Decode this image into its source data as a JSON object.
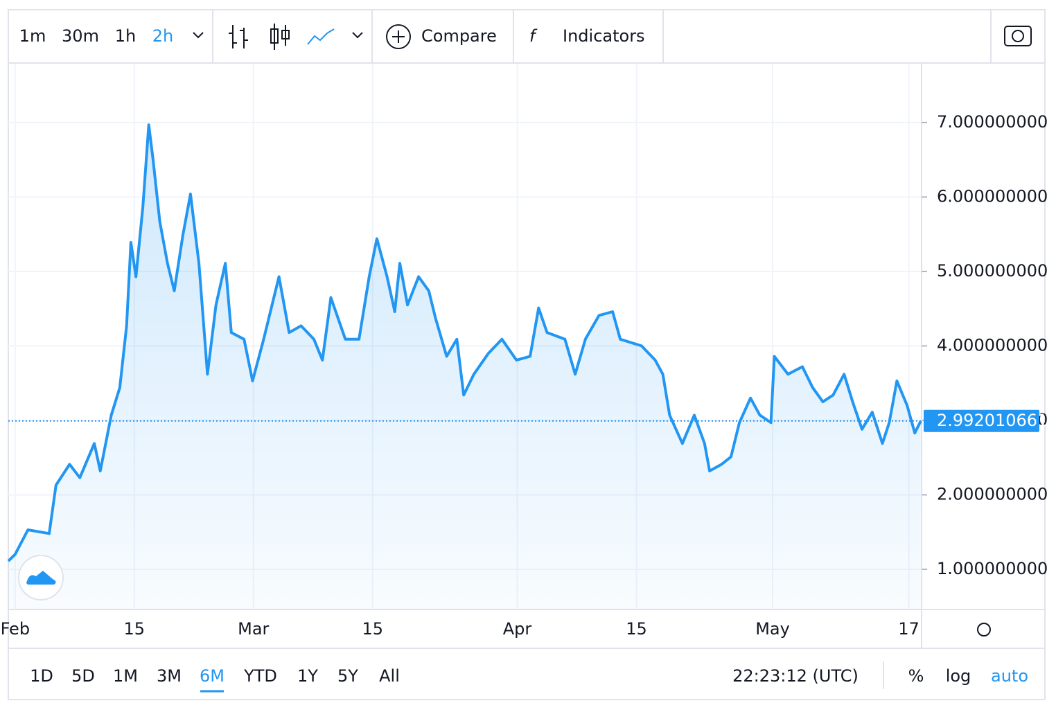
{
  "toolbar": {
    "intervals": [
      "1m",
      "30m",
      "1h",
      "2h"
    ],
    "compare": "Compare",
    "indicators": "Indicators"
  },
  "chart_data": {
    "type": "line",
    "color": "#2196f3",
    "x": [
      -0.8,
      0,
      1.5,
      4,
      4.8,
      6.4,
      7.6,
      9.3,
      10,
      11.3,
      12.3,
      13.1,
      13.6,
      14.2,
      15,
      15.7,
      16.2,
      17,
      17.9,
      18.7,
      19.7,
      20.6,
      21.6,
      22.6,
      23.6,
      24.7,
      25.4,
      26.9,
      27.9,
      29.2,
      31,
      32.2,
      33.6,
      35.1,
      36.1,
      37.1,
      38.8,
      40.4,
      41.6,
      42.5,
      43.7,
      44.6,
      45.2,
      46.1,
      47.4,
      48.6,
      49.4,
      50.7,
      51.9,
      52.7,
      53.9,
      55.6,
      57.2,
      58.9,
      60.5,
      61.5,
      62.5,
      64.6,
      65.8,
      67,
      68.6,
      70.2,
      71.1,
      73.6,
      75.2,
      76.1,
      76.9,
      78.4,
      79.8,
      81,
      81.6,
      83,
      84.1,
      85.1,
      86.4,
      87.5,
      88.8,
      89.2,
      90.8,
      92.5,
      93.7,
      94.9,
      96.1,
      97.4,
      98.4,
      99.5,
      100.7,
      101.9,
      102.7,
      103.6,
      104.8,
      105.7,
      106.4
    ],
    "values": [
      1.11,
      1.2,
      1.53,
      1.48,
      2.13,
      2.41,
      2.23,
      2.69,
      2.32,
      3.07,
      3.44,
      4.27,
      5.39,
      4.93,
      5.86,
      6.97,
      6.51,
      5.67,
      5.11,
      4.74,
      5.48,
      6.04,
      5.11,
      3.62,
      4.55,
      5.11,
      4.18,
      4.09,
      3.53,
      4.09,
      4.93,
      4.18,
      4.27,
      4.09,
      3.81,
      4.65,
      4.09,
      4.09,
      4.93,
      5.44,
      4.93,
      4.46,
      5.11,
      4.55,
      4.93,
      4.74,
      4.37,
      3.86,
      4.09,
      3.34,
      3.62,
      3.9,
      4.09,
      3.81,
      3.86,
      4.51,
      4.18,
      4.09,
      3.62,
      4.09,
      4.41,
      4.46,
      4.09,
      4.0,
      3.81,
      3.62,
      3.07,
      2.69,
      3.07,
      2.69,
      2.32,
      2.41,
      2.51,
      2.97,
      3.3,
      3.07,
      2.97,
      3.86,
      3.62,
      3.72,
      3.44,
      3.25,
      3.34,
      3.62,
      3.25,
      2.88,
      3.11,
      2.69,
      2.97,
      3.53,
      3.2,
      2.83,
      2.99
    ],
    "xlim": [
      -0.8,
      106.5
    ],
    "ylim": [
      0.46,
      7.79
    ],
    "xticks": [
      {
        "value": 0,
        "label": "Feb"
      },
      {
        "value": 14,
        "label": "15"
      },
      {
        "value": 28,
        "label": "Mar"
      },
      {
        "value": 42,
        "label": "15"
      },
      {
        "value": 59,
        "label": "Apr"
      },
      {
        "value": 73,
        "label": "15"
      },
      {
        "value": 89,
        "label": "May"
      },
      {
        "value": 105,
        "label": "17"
      }
    ],
    "yticks": [
      {
        "value": 1,
        "label": "1.000000000"
      },
      {
        "value": 2,
        "label": "2.000000000"
      },
      {
        "value": 3,
        "label": "3.000000000"
      },
      {
        "value": 4,
        "label": "4.000000000"
      },
      {
        "value": 5,
        "label": "5.000000000"
      },
      {
        "value": 6,
        "label": "6.000000000"
      },
      {
        "value": 7,
        "label": "7.000000000"
      }
    ],
    "last_price": 2.992010661,
    "grid": true
  },
  "footer": {
    "ranges": [
      "1D",
      "5D",
      "1M",
      "3M",
      "6M",
      "YTD",
      "1Y",
      "5Y",
      "All"
    ],
    "time": "22:23:12 (UTC)",
    "percent": "%",
    "log": "log",
    "auto": "auto"
  }
}
